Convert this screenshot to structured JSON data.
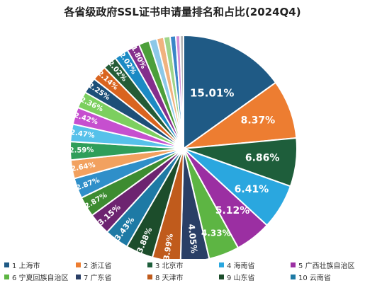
{
  "title": "各省级政府SSL证书申请量排名和占比(2024Q4)",
  "chart_data": {
    "type": "pie",
    "title": "各省级政府SSL证书申请量排名和占比(2024Q4)",
    "unit": "%",
    "slices": [
      {
        "rank": "1",
        "name": "上海市",
        "value": 15.01,
        "label": "15.01%",
        "color": "#1f5a85"
      },
      {
        "rank": "2",
        "name": "浙江省",
        "value": 8.37,
        "label": "8.37%",
        "color": "#ed7d31"
      },
      {
        "rank": "3",
        "name": "北京市",
        "value": 6.86,
        "label": "6.86%",
        "color": "#1e5e3b"
      },
      {
        "rank": "4",
        "name": "海南省",
        "value": 6.41,
        "label": "6.41%",
        "color": "#2aa7df"
      },
      {
        "rank": "5",
        "name": "广西壮族自治区",
        "value": 5.12,
        "label": "5.12%",
        "color": "#9b2fa2"
      },
      {
        "rank": "6",
        "name": "宁夏回族自治区",
        "value": 4.33,
        "label": "4.33%",
        "color": "#5db543"
      },
      {
        "rank": "7",
        "name": "广东省",
        "value": 4.05,
        "label": "4.05%",
        "color": "#2a3f66"
      },
      {
        "rank": "8",
        "name": "天津市",
        "value": 3.99,
        "label": "3.99%",
        "color": "#c05b1c"
      },
      {
        "rank": "9",
        "name": "山东省",
        "value": 3.88,
        "label": "3.88%",
        "color": "#1c4d2b"
      },
      {
        "rank": "10",
        "name": "云南省",
        "value": 3.43,
        "label": "3.43%",
        "color": "#1e7aa5"
      },
      {
        "rank": "",
        "name": "",
        "value": 3.15,
        "label": "3.15%",
        "color": "#6d2470"
      },
      {
        "rank": "",
        "name": "",
        "value": 2.87,
        "label": "2.87%",
        "color": "#3d8c31"
      },
      {
        "rank": "",
        "name": "",
        "value": 2.87,
        "label": "2.87%",
        "color": "#2f8fc9"
      },
      {
        "rank": "",
        "name": "",
        "value": 2.64,
        "label": "2.64%",
        "color": "#f2a15f"
      },
      {
        "rank": "",
        "name": "",
        "value": 2.59,
        "label": "2.59%",
        "color": "#2f9e5a"
      },
      {
        "rank": "",
        "name": "",
        "value": 2.47,
        "label": "2.47%",
        "color": "#56c1ea"
      },
      {
        "rank": "",
        "name": "",
        "value": 2.42,
        "label": "2.42%",
        "color": "#c64fcf"
      },
      {
        "rank": "",
        "name": "",
        "value": 2.36,
        "label": "2.36%",
        "color": "#7ccf5f"
      },
      {
        "rank": "",
        "name": "",
        "value": 2.25,
        "label": "2.25%",
        "color": "#1d4f78"
      },
      {
        "rank": "",
        "name": "",
        "value": 2.14,
        "label": "2.14%",
        "color": "#d9641f"
      },
      {
        "rank": "",
        "name": "",
        "value": 2.02,
        "label": "2.02%",
        "color": "#245c36"
      },
      {
        "rank": "",
        "name": "",
        "value": 2.02,
        "label": "2.02%",
        "color": "#1b8ac4"
      },
      {
        "rank": "",
        "name": "",
        "value": 1.8,
        "label": "1.80%",
        "color": "#842e8c"
      },
      {
        "rank": "",
        "name": "",
        "value": 1.5,
        "label": "",
        "color": "#4c9f3a"
      },
      {
        "rank": "",
        "name": "",
        "value": 1.1,
        "label": "",
        "color": "#8cc8e8"
      },
      {
        "rank": "",
        "name": "",
        "value": 1.0,
        "label": "",
        "color": "#f0b27f"
      },
      {
        "rank": "",
        "name": "",
        "value": 0.9,
        "label": "",
        "color": "#9fd58a"
      },
      {
        "rank": "",
        "name": "",
        "value": 0.8,
        "label": "",
        "color": "#3a86c8"
      },
      {
        "rank": "",
        "name": "",
        "value": 0.6,
        "label": "",
        "color": "#d58fd8"
      },
      {
        "rank": "",
        "name": "",
        "value": 0.5,
        "label": "",
        "color": "#b9b9b9"
      }
    ],
    "legend_position": "bottom"
  },
  "legend": {
    "rows": [
      [
        {
          "text": "1 上海市",
          "color": "#1f5a85"
        },
        {
          "text": "2 浙江省",
          "color": "#ed7d31"
        },
        {
          "text": "3 北京市",
          "color": "#1e5e3b"
        },
        {
          "text": "4 海南省",
          "color": "#2aa7df"
        },
        {
          "text": "5 广西壮族自治区",
          "color": "#9b2fa2"
        }
      ],
      [
        {
          "text": "6 宁夏回族自治区",
          "color": "#5db543"
        },
        {
          "text": "7 广东省",
          "color": "#2a3f66"
        },
        {
          "text": "8 天津市",
          "color": "#c05b1c"
        },
        {
          "text": "9 山东省",
          "color": "#1c4d2b"
        },
        {
          "text": "10 云南省",
          "color": "#1e7aa5"
        }
      ]
    ]
  }
}
